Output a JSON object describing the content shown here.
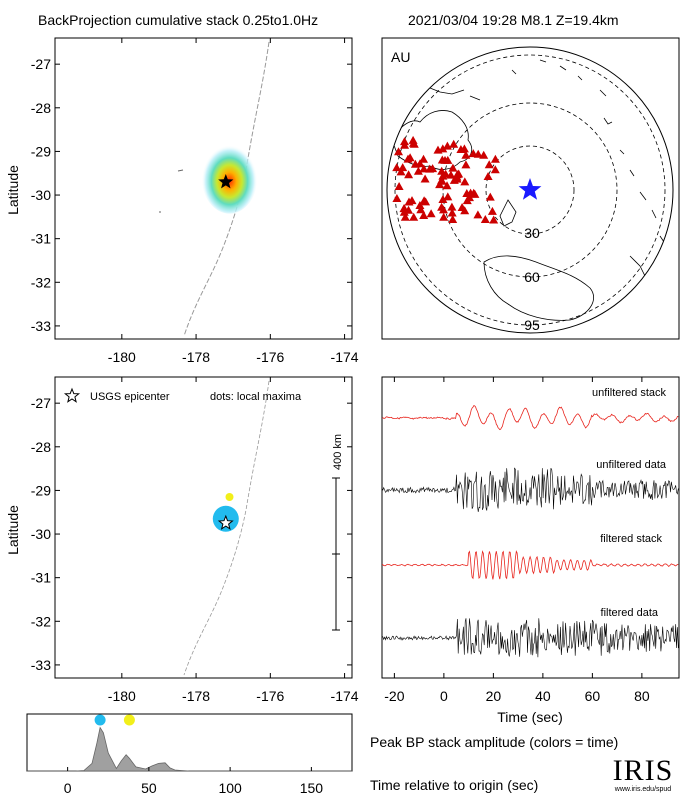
{
  "header": {
    "title": "BackProjection cumulative stack 0.25to1.0Hz",
    "event": "2021/03/04 19:28   M8.1   Z=19.4km"
  },
  "map_axes": {
    "lat_ticks": [
      "-27",
      "-28",
      "-29",
      "-30",
      "-31",
      "-32",
      "-33"
    ],
    "lon_ticks": [
      "-180",
      "-178",
      "-176",
      "-174"
    ],
    "ylabel": "Latitude"
  },
  "globe": {
    "region": "AU",
    "ring_labels": [
      "30",
      "60",
      "95"
    ]
  },
  "local_max_map": {
    "legend_epicenter": "USGS epicenter",
    "legend_dots": "dots: local maxima",
    "scale_label": "400 km"
  },
  "traces": {
    "labels": [
      "unfiltered stack",
      "unfiltered data",
      "filtered stack",
      "filtered data"
    ],
    "xlabel": "Time (sec)",
    "x_ticks": [
      "-20",
      "0",
      "20",
      "40",
      "60",
      "80"
    ]
  },
  "amplitude_panel": {
    "x_ticks": [
      "0",
      "50",
      "100",
      "150"
    ],
    "caption": "Peak BP stack amplitude (colors = time)",
    "xlabel": "Time relative to origin (sec)"
  },
  "logo": {
    "text": "IRIS",
    "url": "www.iris.edu/spud"
  },
  "colors": {
    "stack": "#e8251e",
    "data": "#000000",
    "stations": "#cc0000",
    "epicenter_globe": "#1a1aff",
    "peak_early": "#22bbee",
    "peak_late": "#f2ef1a"
  },
  "chart_data": [
    {
      "type": "heatmap",
      "xlabel": "",
      "ylabel": "Latitude",
      "xlim": [
        -181.8,
        -173.8
      ],
      "ylim": [
        -33.3,
        -26.4
      ],
      "epicenter": {
        "lon": -177.2,
        "lat": -29.7
      },
      "hotspot": {
        "lon": -177.1,
        "lat": -29.6
      }
    },
    {
      "type": "scatter",
      "ylabel": "Latitude",
      "xlim": [
        -181.8,
        -173.8
      ],
      "ylim": [
        -33.3,
        -26.4
      ],
      "epicenter": {
        "lon": -177.2,
        "lat": -29.75
      },
      "local_maxima": [
        {
          "lon": -177.2,
          "lat": -29.65,
          "time_s": 20
        },
        {
          "lon": -177.1,
          "lat": -29.15,
          "time_s": 37
        }
      ]
    },
    {
      "type": "line",
      "xlabel": "Time (sec)",
      "xlim": [
        -25,
        95
      ],
      "series": [
        {
          "name": "unfiltered stack"
        },
        {
          "name": "unfiltered data"
        },
        {
          "name": "filtered stack"
        },
        {
          "name": "filtered data"
        }
      ]
    },
    {
      "type": "area",
      "xlabel": "Time relative to origin (sec)",
      "xlim": [
        -25,
        175
      ],
      "ylim": [
        0,
        1
      ],
      "x": [
        -25,
        5,
        10,
        15,
        18,
        20,
        22,
        25,
        30,
        33,
        36,
        38,
        42,
        48,
        52,
        56,
        60,
        63,
        66,
        70,
        75,
        175
      ],
      "y": [
        0,
        0,
        0.01,
        0.15,
        0.55,
        0.85,
        0.75,
        0.35,
        0.05,
        0.2,
        0.32,
        0.25,
        0.08,
        0.04,
        0.1,
        0.15,
        0.16,
        0.06,
        0.02,
        0.01,
        0,
        0
      ],
      "peak_markers": [
        {
          "x": 20,
          "color": "#22bbee"
        },
        {
          "x": 38,
          "color": "#f2ef1a"
        }
      ]
    }
  ]
}
